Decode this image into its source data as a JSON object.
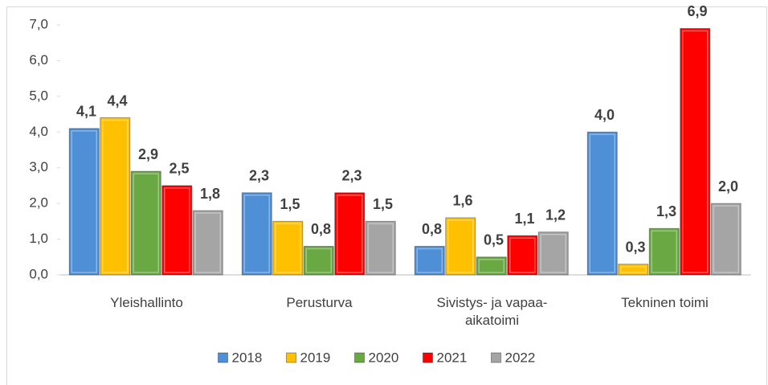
{
  "chart_data": {
    "type": "bar",
    "categories": [
      "Yleishallinto",
      "Perusturva",
      "Sivistys- ja vapaa-aikatoimi",
      "Tekninen toimi"
    ],
    "series": [
      {
        "name": "2018",
        "color": "#4f8fd6",
        "values": [
          4.1,
          2.3,
          0.8,
          4.0
        ],
        "value_labels": [
          "4,1",
          "2,3",
          "0,8",
          "4,0"
        ]
      },
      {
        "name": "2019",
        "color": "#ffc000",
        "values": [
          4.4,
          1.5,
          1.6,
          0.3
        ],
        "value_labels": [
          "4,4",
          "1,5",
          "1,6",
          "0,3"
        ]
      },
      {
        "name": "2020",
        "color": "#6aa844",
        "values": [
          2.9,
          0.8,
          0.5,
          1.3
        ],
        "value_labels": [
          "2,9",
          "0,8",
          "0,5",
          "1,3"
        ]
      },
      {
        "name": "2021",
        "color": "#ff0000",
        "values": [
          2.5,
          2.3,
          1.1,
          6.9
        ],
        "value_labels": [
          "2,5",
          "2,3",
          "1,1",
          "6,9"
        ]
      },
      {
        "name": "2022",
        "color": "#a5a5a5",
        "values": [
          1.8,
          1.5,
          1.2,
          2.0
        ],
        "value_labels": [
          "1,8",
          "1,5",
          "1,2",
          "2,0"
        ]
      }
    ],
    "ylim": [
      0,
      7
    ],
    "yticks": [
      {
        "value": 0,
        "label": "0,0"
      },
      {
        "value": 1,
        "label": "1,0"
      },
      {
        "value": 2,
        "label": "2,0"
      },
      {
        "value": 3,
        "label": "3,0"
      },
      {
        "value": 4,
        "label": "4,0"
      },
      {
        "value": 5,
        "label": "5,0"
      },
      {
        "value": 6,
        "label": "6,0"
      },
      {
        "value": 7,
        "label": "7,0"
      }
    ],
    "grid": false,
    "legend": "bottom"
  }
}
